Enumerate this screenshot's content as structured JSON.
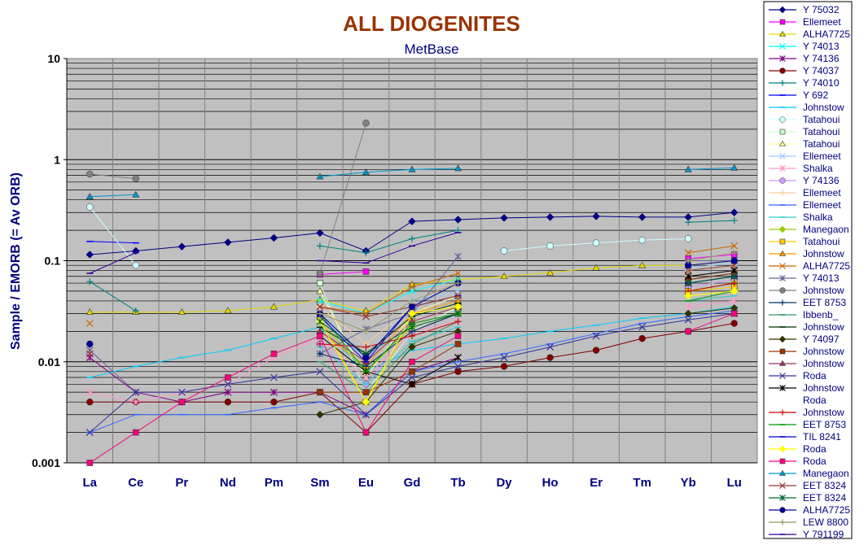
{
  "chart_data": {
    "type": "line",
    "title": "ALL DIOGENITES",
    "subtitle": "MetBase",
    "ylabel": "Sample / EMORB (= Av ORB)",
    "xlabel": "",
    "yscale": "log",
    "ylim": [
      0.001,
      10
    ],
    "y_ticks": [
      "0.001",
      "0.01",
      "0.1",
      "1",
      "10"
    ],
    "grid": true,
    "legend_position": "right",
    "categories": [
      "La",
      "Ce",
      "Pr",
      "Nd",
      "Pm",
      "Sm",
      "Eu",
      "Gd",
      "Tb",
      "Dy",
      "Ho",
      "Er",
      "Tm",
      "Yb",
      "Lu"
    ],
    "colors": {
      "title": "#993300",
      "subtitle": "#000080",
      "axis_text": "#000080",
      "plot_bg": "#c0c0c0"
    },
    "series": [
      {
        "name": "Y 75032",
        "color": "#000080",
        "marker": "diamond",
        "values": [
          0.115,
          0.125,
          0.138,
          0.152,
          0.168,
          0.188,
          0.125,
          0.245,
          0.255,
          0.265,
          0.27,
          0.275,
          0.27,
          0.27,
          0.3
        ]
      },
      {
        "name": "Ellemeet",
        "color": "#ff00ff",
        "marker": "square",
        "values": [
          null,
          null,
          null,
          null,
          null,
          0.073,
          0.078,
          null,
          null,
          null,
          null,
          null,
          null,
          0.105,
          0.115
        ]
      },
      {
        "name": "ALHA7725",
        "color": "#e6d800",
        "marker": "triangle",
        "values": [
          0.031,
          0.031,
          0.031,
          0.032,
          0.035,
          0.041,
          0.032,
          0.058,
          0.065,
          0.07,
          0.076,
          0.085,
          0.09,
          0.09,
          0.1
        ]
      },
      {
        "name": "Y 74013",
        "color": "#00ffff",
        "marker": "x",
        "values": [
          null,
          null,
          null,
          null,
          null,
          0.04,
          0.03,
          0.05,
          0.065,
          null,
          null,
          null,
          null,
          0.08,
          0.09
        ]
      },
      {
        "name": "Y 74136",
        "color": "#800080",
        "marker": "star",
        "values": [
          0.011,
          0.005,
          0.004,
          0.005,
          0.005,
          0.005,
          0.003,
          0.008,
          0.011,
          null,
          null,
          null,
          null,
          0.07,
          0.08
        ]
      },
      {
        "name": "Y 74037",
        "color": "#800000",
        "marker": "circle",
        "values": [
          0.004,
          0.004,
          0.004,
          0.004,
          0.004,
          0.005,
          0.002,
          0.006,
          0.008,
          0.009,
          0.011,
          0.013,
          0.017,
          0.02,
          0.024
        ]
      },
      {
        "name": "Y 74010",
        "color": "#008080",
        "marker": "plus",
        "values": [
          0.062,
          0.032,
          null,
          null,
          null,
          0.14,
          0.12,
          0.165,
          0.2,
          null,
          null,
          null,
          null,
          0.24,
          0.25
        ]
      },
      {
        "name": "Y 692",
        "color": "#0000ff",
        "marker": "dash",
        "values": [
          0.155,
          0.15,
          null,
          null,
          null,
          null,
          null,
          null,
          null,
          null,
          null,
          null,
          null,
          null,
          null
        ]
      },
      {
        "name": "Johnstow",
        "color": "#00ccff",
        "marker": "dash",
        "values": [
          0.007,
          0.009,
          0.011,
          0.013,
          0.017,
          0.022,
          0.008,
          0.013,
          0.015,
          0.017,
          0.02,
          0.023,
          0.027,
          0.03,
          0.035
        ]
      },
      {
        "name": "Tatahoui",
        "color": "#ccffff",
        "marker": "circle",
        "values": [
          0.34,
          0.09,
          null,
          null,
          null,
          null,
          null,
          null,
          null,
          0.125,
          0.14,
          0.15,
          0.16,
          0.165,
          null
        ]
      },
      {
        "name": "Tatahoui",
        "color": "#ccffcc",
        "marker": "square",
        "values": [
          null,
          null,
          null,
          null,
          null,
          0.06,
          0.005,
          0.02,
          0.035,
          null,
          null,
          null,
          null,
          0.06,
          0.07
        ]
      },
      {
        "name": "Tatahoui",
        "color": "#ffff99",
        "marker": "triangle",
        "values": [
          null,
          null,
          null,
          null,
          null,
          0.05,
          0.007,
          0.03,
          0.045,
          null,
          null,
          null,
          null,
          0.08,
          0.09
        ]
      },
      {
        "name": "Ellemeet",
        "color": "#99ccff",
        "marker": "x",
        "values": [
          null,
          null,
          null,
          null,
          null,
          0.03,
          0.01,
          0.04,
          0.05,
          null,
          null,
          null,
          null,
          0.085,
          0.095
        ]
      },
      {
        "name": "Shalka",
        "color": "#ff99cc",
        "marker": "star",
        "values": [
          0.005,
          0.004,
          0.005,
          0.006,
          0.011,
          0.017,
          0.007,
          0.02,
          0.025,
          null,
          null,
          null,
          null,
          0.035,
          0.04
        ]
      },
      {
        "name": "Y 74136",
        "color": "#cc99ff",
        "marker": "circle",
        "values": [
          null,
          null,
          null,
          null,
          null,
          0.015,
          0.006,
          0.02,
          0.03,
          null,
          null,
          null,
          null,
          0.055,
          0.065
        ]
      },
      {
        "name": "Ellemeet",
        "color": "#ffcc99",
        "marker": "plus",
        "values": [
          null,
          null,
          null,
          null,
          null,
          0.035,
          0.015,
          0.035,
          0.045,
          null,
          null,
          null,
          null,
          0.07,
          0.08
        ]
      },
      {
        "name": "Ellemeet",
        "color": "#3366ff",
        "marker": "dash",
        "values": [
          0.002,
          0.003,
          0.003,
          0.003,
          0.0035,
          0.004,
          0.003,
          0.008,
          0.01,
          0.012,
          0.015,
          0.019,
          0.024,
          0.028,
          0.032
        ]
      },
      {
        "name": "Shalka",
        "color": "#33cccc",
        "marker": "dash",
        "values": [
          null,
          null,
          null,
          null,
          null,
          0.014,
          0.006,
          0.016,
          0.022,
          null,
          null,
          null,
          null,
          0.04,
          0.045
        ]
      },
      {
        "name": "Manegaon",
        "color": "#99cc00",
        "marker": "diamond",
        "values": [
          null,
          null,
          null,
          null,
          null,
          0.025,
          0.008,
          0.022,
          0.03,
          null,
          null,
          null,
          null,
          0.05,
          0.06
        ]
      },
      {
        "name": "Tatahoui",
        "color": "#ffcc00",
        "marker": "square",
        "values": [
          null,
          null,
          null,
          null,
          null,
          0.028,
          0.004,
          0.025,
          0.035,
          null,
          null,
          null,
          null,
          0.05,
          0.055
        ]
      },
      {
        "name": "Johnstow",
        "color": "#ff9900",
        "marker": "triangle",
        "values": [
          null,
          null,
          null,
          null,
          null,
          0.02,
          0.009,
          0.03,
          0.04,
          null,
          null,
          null,
          null,
          0.06,
          0.07
        ]
      },
      {
        "name": "ALHA7725",
        "color": "#cc6600",
        "marker": "x",
        "values": [
          0.024,
          null,
          null,
          null,
          null,
          0.035,
          0.03,
          0.055,
          0.075,
          null,
          null,
          null,
          null,
          0.12,
          0.14
        ]
      },
      {
        "name": "Y 74013",
        "color": "#666699",
        "marker": "star",
        "values": [
          0.013,
          0.005,
          null,
          null,
          null,
          0.012,
          0.021,
          0.03,
          0.11,
          null,
          null,
          null,
          null,
          0.1,
          0.1
        ]
      },
      {
        "name": "Johnstow",
        "color": "#808080",
        "marker": "circle",
        "values": [
          0.72,
          0.65,
          null,
          null,
          null,
          0.075,
          2.3,
          null,
          null,
          null,
          null,
          null,
          null,
          null,
          null
        ]
      },
      {
        "name": "EET 8753",
        "color": "#003366",
        "marker": "plus",
        "values": [
          null,
          null,
          null,
          null,
          null,
          0.012,
          0.009,
          0.02,
          0.03,
          null,
          null,
          null,
          null,
          0.06,
          0.07
        ]
      },
      {
        "name": "Ibbenb_",
        "color": "#339966",
        "marker": "dash",
        "values": [
          null,
          null,
          null,
          null,
          null,
          0.01,
          0.005,
          0.015,
          0.025,
          null,
          null,
          null,
          null,
          0.05,
          0.06
        ]
      },
      {
        "name": "Johnstow",
        "color": "#003300",
        "marker": "dash",
        "values": [
          null,
          null,
          null,
          null,
          null,
          0.022,
          0.012,
          0.028,
          0.038,
          null,
          null,
          null,
          null,
          0.065,
          0.075
        ]
      },
      {
        "name": "Y 74097",
        "color": "#333300",
        "marker": "diamond",
        "values": [
          null,
          null,
          null,
          null,
          null,
          0.003,
          0.004,
          0.014,
          0.02,
          null,
          null,
          null,
          null,
          0.03,
          0.034
        ]
      },
      {
        "name": "Johnstow",
        "color": "#993300",
        "marker": "square",
        "values": [
          null,
          null,
          null,
          null,
          null,
          0.005,
          0.005,
          0.008,
          0.015,
          null,
          null,
          null,
          null,
          0.065,
          0.075
        ]
      },
      {
        "name": "Johnstow",
        "color": "#993366",
        "marker": "triangle",
        "values": [
          null,
          null,
          null,
          null,
          null,
          0.02,
          0.01,
          0.025,
          0.035,
          null,
          null,
          null,
          null,
          0.06,
          0.07
        ]
      },
      {
        "name": "Roda",
        "color": "#333399",
        "marker": "x",
        "values": [
          0.002,
          0.005,
          0.005,
          0.006,
          0.007,
          0.008,
          0.003,
          0.007,
          0.009,
          0.011,
          0.014,
          0.018,
          0.022,
          0.026,
          0.03
        ]
      },
      {
        "name": "Johnstow\nRoda",
        "color": "#000000",
        "marker": "star",
        "values": [
          null,
          null,
          null,
          null,
          null,
          0.018,
          0.008,
          0.006,
          0.011,
          null,
          null,
          null,
          null,
          0.07,
          0.08
        ]
      },
      {
        "name": "Johnstow",
        "color": "#cc0000",
        "marker": "plus",
        "values": [
          null,
          null,
          null,
          null,
          null,
          0.015,
          0.014,
          0.018,
          0.025,
          null,
          null,
          null,
          null,
          0.05,
          0.06
        ]
      },
      {
        "name": "EET 8753",
        "color": "#009900",
        "marker": "dash",
        "values": [
          null,
          null,
          null,
          null,
          null,
          0.03,
          0.008,
          0.024,
          0.03,
          null,
          null,
          null,
          null,
          0.04,
          0.05
        ]
      },
      {
        "name": "TIL 8241",
        "color": "#0000cc",
        "marker": "dash",
        "values": [
          null,
          null,
          null,
          null,
          null,
          0.028,
          0.01,
          0.035,
          0.045,
          null,
          null,
          null,
          null,
          0.06,
          0.07
        ]
      },
      {
        "name": "Roda",
        "color": "#ffff00",
        "marker": "diamond",
        "values": [
          null,
          null,
          null,
          null,
          null,
          0.025,
          0.004,
          0.03,
          0.035,
          null,
          null,
          null,
          null,
          0.045,
          0.05
        ]
      },
      {
        "name": "Roda",
        "color": "#ff0080",
        "marker": "square",
        "values": [
          0.001,
          0.002,
          0.004,
          0.007,
          0.012,
          0.018,
          0.002,
          0.01,
          0.018,
          null,
          null,
          null,
          null,
          0.02,
          0.03
        ]
      },
      {
        "name": "Manegaon",
        "color": "#0099cc",
        "marker": "triangle",
        "values": [
          0.43,
          0.45,
          null,
          null,
          null,
          0.68,
          0.75,
          0.8,
          0.82,
          null,
          null,
          null,
          null,
          0.8,
          0.83
        ]
      },
      {
        "name": "EET 8324",
        "color": "#993333",
        "marker": "x",
        "values": [
          0.012,
          null,
          null,
          null,
          null,
          0.035,
          0.028,
          0.035,
          0.045,
          null,
          null,
          null,
          null,
          0.08,
          0.09
        ]
      },
      {
        "name": "EET 8324",
        "color": "#006633",
        "marker": "star",
        "values": [
          null,
          null,
          null,
          null,
          null,
          0.025,
          0.012,
          0.022,
          0.03,
          null,
          null,
          null,
          null,
          0.06,
          0.07
        ]
      },
      {
        "name": "ALHA7725",
        "color": "#000099",
        "marker": "circle",
        "values": [
          0.015,
          null,
          null,
          null,
          null,
          0.03,
          0.011,
          0.035,
          0.06,
          null,
          null,
          null,
          null,
          0.09,
          0.1
        ]
      },
      {
        "name": "LEW 8800",
        "color": "#999966",
        "marker": "plus",
        "values": [
          null,
          null,
          null,
          null,
          null,
          0.03,
          0.02,
          0.04,
          0.06,
          null,
          null,
          null,
          null,
          0.1,
          0.12
        ]
      },
      {
        "name": "Y 791199",
        "color": "#330099",
        "marker": "dash",
        "values": [
          0.075,
          0.12,
          null,
          null,
          null,
          0.1,
          0.095,
          0.14,
          0.19,
          null,
          null,
          null,
          null,
          null,
          null
        ]
      }
    ]
  }
}
